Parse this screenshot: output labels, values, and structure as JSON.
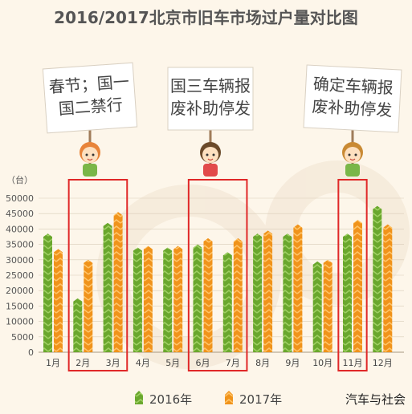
{
  "title": "2016/2017北京市旧车市场过户量对比图",
  "signs": [
    {
      "lines": [
        "春节；国一",
        "国二禁行"
      ]
    },
    {
      "lines": [
        "国三车辆报",
        "废补助停发"
      ]
    },
    {
      "lines": [
        "确定车辆报",
        "废补助停发"
      ]
    }
  ],
  "credit": "汽车与社会",
  "colors": {
    "s2016": "#6aa72d",
    "s2017": "#f0931b",
    "highlight": "#e02828"
  },
  "chart_data": {
    "type": "bar",
    "ylabel": "（台）",
    "ylim": [
      0,
      50000
    ],
    "yticks": [
      0,
      5000,
      10000,
      15000,
      20000,
      25000,
      30000,
      35000,
      40000,
      45000,
      50000
    ],
    "categories": [
      "1月",
      "2月",
      "3月",
      "4月",
      "5月",
      "6月",
      "7月",
      "8月",
      "9月",
      "10月",
      "11月",
      "12月"
    ],
    "series": [
      {
        "name": "2016年",
        "values": [
          38500,
          17500,
          42000,
          34000,
          34000,
          35000,
          32500,
          38500,
          38500,
          29500,
          38500,
          47500
        ]
      },
      {
        "name": "2017年",
        "values": [
          33500,
          30000,
          45500,
          34500,
          34500,
          37000,
          37000,
          39500,
          41500,
          30000,
          43000,
          41500
        ]
      }
    ],
    "highlight_groups": [
      [
        "2月",
        "3月"
      ],
      [
        "6月",
        "7月"
      ],
      [
        "11月"
      ]
    ],
    "legend_position": "bottom"
  }
}
